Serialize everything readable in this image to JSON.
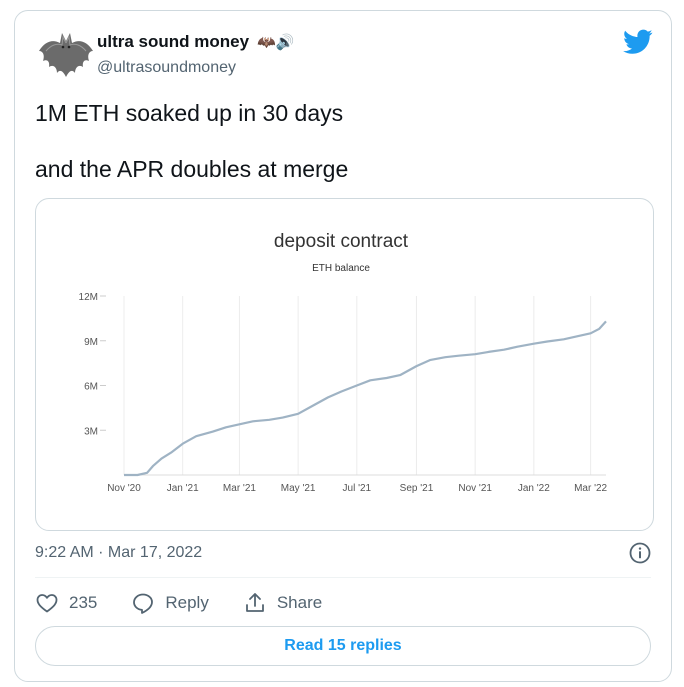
{
  "author": {
    "display_name": "ultra sound money",
    "name_emojis": "🦇🔊",
    "handle": "@ultrasoundmoney",
    "avatar_icon": "bat-icon"
  },
  "platform_icon": "twitter-bird-icon",
  "tweet": {
    "text": "1M ETH soaked up in 30 days\n\nand the APR doubles at merge"
  },
  "chart_data": {
    "type": "line",
    "title": "deposit contract",
    "subtitle": "ETH balance",
    "xlabel": "",
    "ylabel": "",
    "x_tick_labels": [
      "Nov '20",
      "Jan '21",
      "Mar '21",
      "May '21",
      "Jul '21",
      "Sep '21",
      "Nov '21",
      "Jan '22",
      "Mar '22"
    ],
    "y_tick_labels": [
      "3M",
      "6M",
      "9M",
      "12M"
    ],
    "ylim": [
      0,
      12000000
    ],
    "x_range": [
      "2020-11-01",
      "2022-03-17"
    ],
    "grid": "vertical",
    "line_color": "#9fb3c4",
    "series": [
      {
        "x": [
          "2020-11-01",
          "2020-11-15",
          "2020-11-25",
          "2020-12-01",
          "2020-12-10",
          "2020-12-20",
          "2021-01-01",
          "2021-01-15",
          "2021-02-01",
          "2021-02-15",
          "2021-03-01",
          "2021-03-15",
          "2021-04-01",
          "2021-04-15",
          "2021-05-01",
          "2021-05-15",
          "2021-06-01",
          "2021-06-15",
          "2021-07-01",
          "2021-07-15",
          "2021-08-01",
          "2021-08-15",
          "2021-09-01",
          "2021-09-15",
          "2021-10-01",
          "2021-10-15",
          "2021-11-01",
          "2021-11-15",
          "2021-12-01",
          "2021-12-15",
          "2022-01-01",
          "2022-01-15",
          "2022-02-01",
          "2022-02-15",
          "2022-03-01",
          "2022-03-10",
          "2022-03-17"
        ],
        "values": [
          0,
          0,
          150000,
          600000,
          1100000,
          1500000,
          2100000,
          2600000,
          2900000,
          3200000,
          3400000,
          3600000,
          3700000,
          3850000,
          4100000,
          4600000,
          5200000,
          5600000,
          6000000,
          6350000,
          6500000,
          6700000,
          7300000,
          7700000,
          7900000,
          8000000,
          8100000,
          8250000,
          8400000,
          8600000,
          8800000,
          8950000,
          9100000,
          9300000,
          9500000,
          9800000,
          10300000
        ]
      }
    ]
  },
  "timestamp": "9:22 AM · Mar 17, 2022",
  "actions": {
    "like_count": "235",
    "reply_label": "Reply",
    "share_label": "Share"
  },
  "read_replies_label": "Read 15 replies"
}
